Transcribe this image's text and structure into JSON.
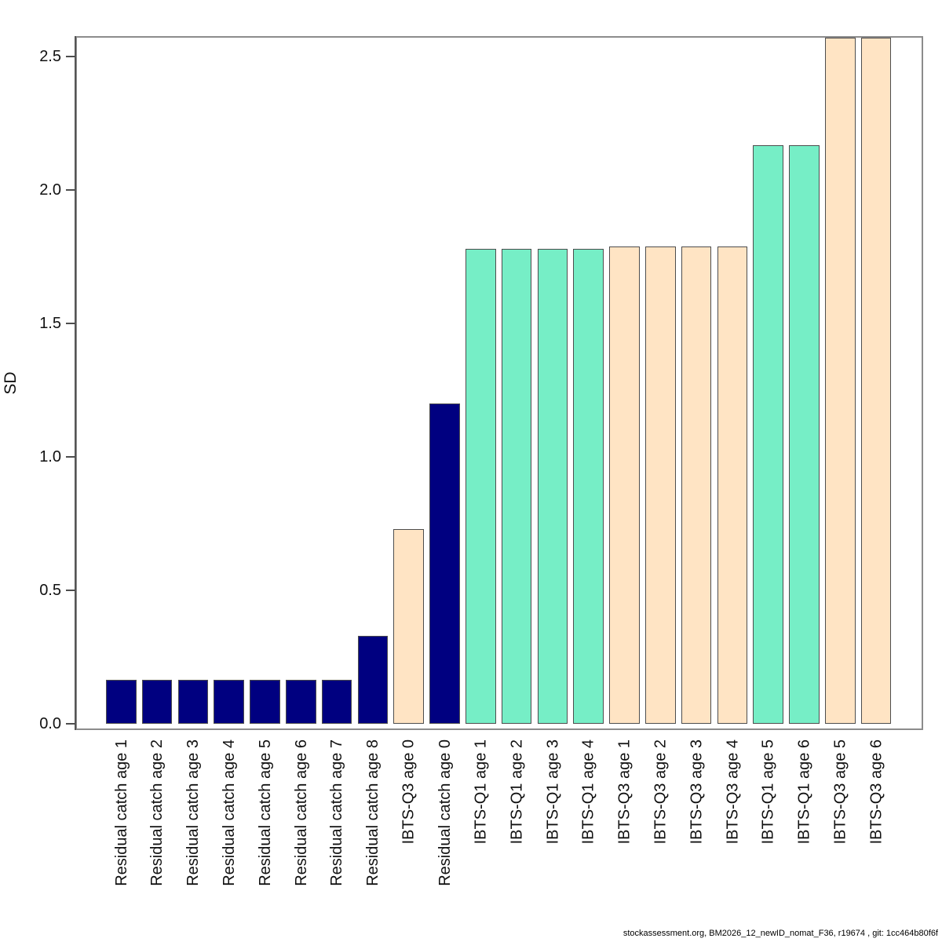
{
  "chart_data": {
    "type": "bar",
    "title": "",
    "xlabel": "",
    "ylabel": "SD",
    "ylim": [
      0,
      2.58
    ],
    "grid": false,
    "legend_position": "none",
    "ytick_labels": [
      "0.0",
      "0.5",
      "1.0",
      "1.5",
      "2.0",
      "2.5"
    ],
    "series_colors": {
      "residual_catch": "#000080",
      "ibts_q1": "#76EEC6",
      "ibts_q3": "#FFE4C4"
    },
    "bars": [
      {
        "label": "Residual catch age 1",
        "value": 0.165,
        "series": "residual_catch"
      },
      {
        "label": "Residual catch age 2",
        "value": 0.165,
        "series": "residual_catch"
      },
      {
        "label": "Residual catch age 3",
        "value": 0.165,
        "series": "residual_catch"
      },
      {
        "label": "Residual catch age 4",
        "value": 0.165,
        "series": "residual_catch"
      },
      {
        "label": "Residual catch age 5",
        "value": 0.165,
        "series": "residual_catch"
      },
      {
        "label": "Residual catch age 6",
        "value": 0.165,
        "series": "residual_catch"
      },
      {
        "label": "Residual catch age 7",
        "value": 0.165,
        "series": "residual_catch"
      },
      {
        "label": "Residual catch age 8",
        "value": 0.33,
        "series": "residual_catch"
      },
      {
        "label": "IBTS-Q3 age 0",
        "value": 0.73,
        "series": "ibts_q3"
      },
      {
        "label": "Residual catch age 0",
        "value": 1.2,
        "series": "residual_catch"
      },
      {
        "label": "IBTS-Q1 age 1",
        "value": 1.78,
        "series": "ibts_q1"
      },
      {
        "label": "IBTS-Q1 age 2",
        "value": 1.78,
        "series": "ibts_q1"
      },
      {
        "label": "IBTS-Q1 age 3",
        "value": 1.78,
        "series": "ibts_q1"
      },
      {
        "label": "IBTS-Q1 age 4",
        "value": 1.78,
        "series": "ibts_q1"
      },
      {
        "label": "IBTS-Q3 age 1",
        "value": 1.79,
        "series": "ibts_q3"
      },
      {
        "label": "IBTS-Q3 age 2",
        "value": 1.79,
        "series": "ibts_q3"
      },
      {
        "label": "IBTS-Q3 age 3",
        "value": 1.79,
        "series": "ibts_q3"
      },
      {
        "label": "IBTS-Q3 age 4",
        "value": 1.79,
        "series": "ibts_q3"
      },
      {
        "label": "IBTS-Q1 age 5",
        "value": 2.17,
        "series": "ibts_q1"
      },
      {
        "label": "IBTS-Q1 age 6",
        "value": 2.17,
        "series": "ibts_q1"
      },
      {
        "label": "IBTS-Q3 age 5",
        "value": 2.58,
        "series": "ibts_q3"
      },
      {
        "label": "IBTS-Q3 age 6",
        "value": 2.58,
        "series": "ibts_q3"
      }
    ]
  },
  "footer": {
    "attribution": "stockassessment.org, BM2026_12_newID_nomat_F36, r19674 , git: 1cc464b80f6f"
  }
}
